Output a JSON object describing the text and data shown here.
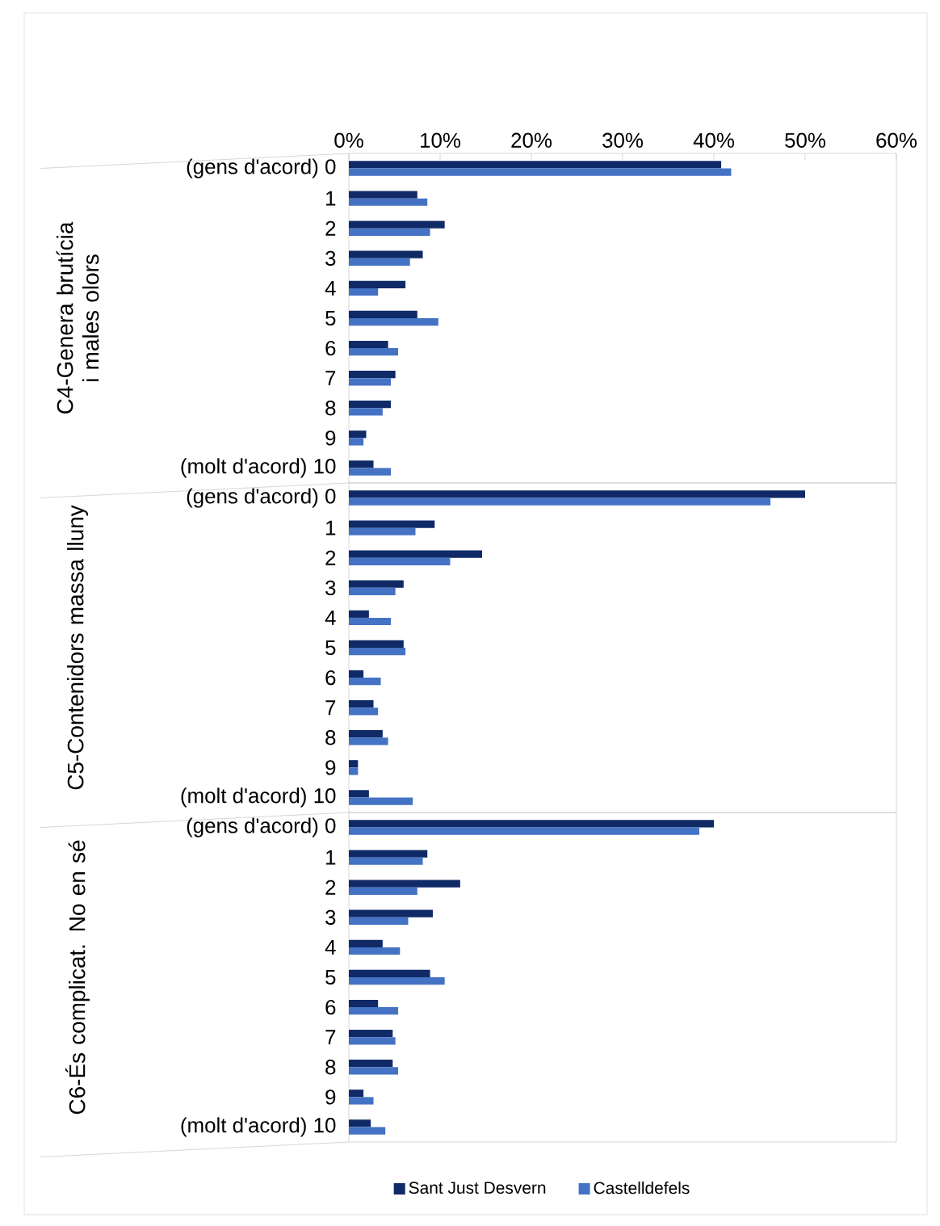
{
  "chart_data": [
    {
      "type": "bar",
      "orientation": "horizontal",
      "ylabel": "C4-Genera brutícia i males olors",
      "categories": [
        "(gens d'acord) 0",
        "1",
        "2",
        "3",
        "4",
        "5",
        "6",
        "7",
        "8",
        "9",
        "(molt d'acord) 10"
      ],
      "series": [
        {
          "color": "#0f2a66",
          "values": [
            40.8,
            7.5,
            10.5,
            8.1,
            6.2,
            7.5,
            4.3,
            5.1,
            4.6,
            1.9,
            2.7
          ]
        },
        {
          "color": "#4472c4",
          "values": [
            41.9,
            8.6,
            8.9,
            6.7,
            3.2,
            9.8,
            5.4,
            4.6,
            3.7,
            1.6,
            4.6
          ]
        }
      ],
      "xlim": [
        0,
        60
      ],
      "xticks": [
        {
          "value": 0,
          "label": "0%"
        },
        {
          "value": 10,
          "label": "10%"
        },
        {
          "value": 20,
          "label": "20%"
        },
        {
          "value": 30,
          "label": "30%"
        },
        {
          "value": 40,
          "label": "40%"
        },
        {
          "value": 50,
          "label": "50%"
        },
        {
          "value": 60,
          "label": "60%"
        }
      ]
    },
    {
      "type": "bar",
      "orientation": "horizontal",
      "ylabel": "C5-Contenidors massa lluny",
      "categories": [
        "(gens d'acord) 0",
        "1",
        "2",
        "3",
        "4",
        "5",
        "6",
        "7",
        "8",
        "9",
        "(molt d'acord) 10"
      ],
      "series": [
        {
          "color": "#0f2a66",
          "values": [
            50.0,
            9.4,
            14.6,
            6.0,
            2.2,
            6.0,
            1.6,
            2.7,
            3.7,
            1.0,
            2.2
          ]
        },
        {
          "color": "#4472c4",
          "values": [
            46.2,
            7.3,
            11.1,
            5.1,
            4.6,
            6.2,
            3.5,
            3.2,
            4.3,
            1.0,
            7.0
          ]
        }
      ],
      "xlim": [
        0,
        60
      ],
      "tick_labels": "y"
    },
    {
      "type": "bar",
      "orientation": "horizontal",
      "ylabel": "C6-És complicat. No en sé",
      "categories": [
        "(gens d'acord) 0",
        "1",
        "2",
        "3",
        "4",
        "5",
        "6",
        "7",
        "8",
        "9",
        "(molt d'acord) 10"
      ],
      "series": [
        {
          "name": "Sant Just Desvern",
          "color": "#0f2a66",
          "values": [
            40.0,
            8.6,
            12.2,
            9.2,
            3.7,
            8.9,
            3.2,
            4.8,
            4.8,
            1.6,
            2.4
          ]
        },
        {
          "name": "Castelldefels",
          "color": "#4472c4",
          "values": [
            38.4,
            8.1,
            7.5,
            6.5,
            5.6,
            10.5,
            5.4,
            5.1,
            5.4,
            2.7,
            4.0
          ]
        }
      ],
      "xlim": [
        0,
        60
      ],
      "tick_labels": "y",
      "legend": "bottom"
    }
  ]
}
